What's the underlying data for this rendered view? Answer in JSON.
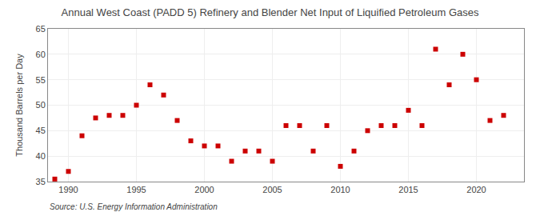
{
  "chart_data": {
    "type": "scatter",
    "title": "Annual West Coast (PADD 5) Refinery and Blender Net Input of Liquified Petroleum Gases",
    "ylabel": "Thousand Barrels per Day",
    "annotations": [
      "Source: U.S. Energy Information Administration"
    ],
    "x": [
      1989,
      1990,
      1991,
      1992,
      1993,
      1994,
      1995,
      1996,
      1997,
      1998,
      1999,
      2000,
      2001,
      2002,
      2003,
      2004,
      2005,
      2006,
      2007,
      2008,
      2009,
      2010,
      2011,
      2012,
      2013,
      2014,
      2015,
      2016,
      2017,
      2018,
      2019,
      2020,
      2021,
      2022
    ],
    "values": [
      35.5,
      37.0,
      44.0,
      47.5,
      48.0,
      48.0,
      50.0,
      54.0,
      52.0,
      47.0,
      43.0,
      42.0,
      42.0,
      39.0,
      41.0,
      41.0,
      39.0,
      46.0,
      46.0,
      41.0,
      46.0,
      38.0,
      41.0,
      45.0,
      46.0,
      46.0,
      49.0,
      46.0,
      61.0,
      54.0,
      60.0,
      55.0,
      47.0,
      48.0
    ],
    "color": "#cc0000",
    "marker": "square",
    "xlim": [
      1988.5,
      2023.5
    ],
    "xticks": [
      1990,
      1995,
      2000,
      2005,
      2010,
      2015,
      2020
    ],
    "ylim": [
      35,
      65
    ],
    "yticks": [
      35,
      40,
      45,
      50,
      55,
      60,
      65
    ],
    "grid": true
  }
}
